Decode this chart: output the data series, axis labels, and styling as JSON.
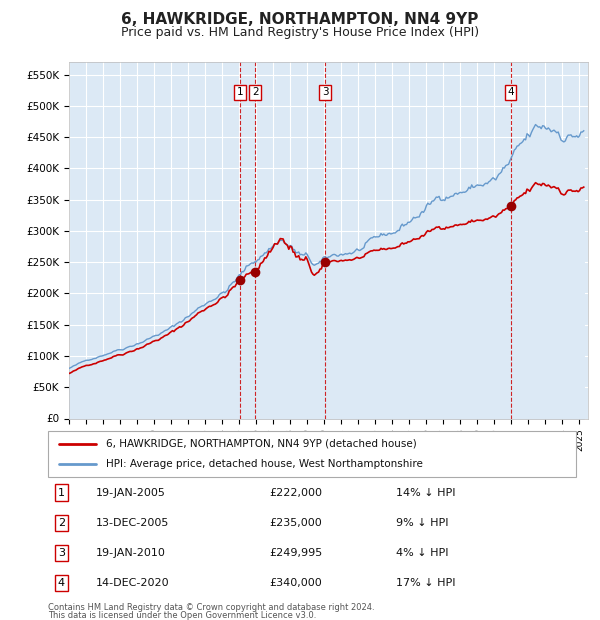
{
  "title": "6, HAWKRIDGE, NORTHAMPTON, NN4 9YP",
  "subtitle": "Price paid vs. HM Land Registry's House Price Index (HPI)",
  "title_fontsize": 11,
  "subtitle_fontsize": 9,
  "ylabel_ticks": [
    "£0",
    "£50K",
    "£100K",
    "£150K",
    "£200K",
    "£250K",
    "£300K",
    "£350K",
    "£400K",
    "£450K",
    "£500K",
    "£550K"
  ],
  "ytick_values": [
    0,
    50000,
    100000,
    150000,
    200000,
    250000,
    300000,
    350000,
    400000,
    450000,
    500000,
    550000
  ],
  "ylim": [
    0,
    570000
  ],
  "xlim_start": 1995.0,
  "xlim_end": 2025.5,
  "background_color": "#ffffff",
  "plot_bg_color": "#dce9f5",
  "grid_color": "#ffffff",
  "legend_label_red": "6, HAWKRIDGE, NORTHAMPTON, NN4 9YP (detached house)",
  "legend_label_blue": "HPI: Average price, detached house, West Northamptonshire",
  "transactions": [
    {
      "num": 1,
      "date": "19-JAN-2005",
      "price": 222000,
      "pct": "14%",
      "x": 2005.05
    },
    {
      "num": 2,
      "date": "13-DEC-2005",
      "price": 235000,
      "pct": "9%",
      "x": 2005.95
    },
    {
      "num": 3,
      "date": "19-JAN-2010",
      "price": 249995,
      "pct": "4%",
      "x": 2010.05
    },
    {
      "num": 4,
      "date": "14-DEC-2020",
      "price": 340000,
      "pct": "17%",
      "x": 2020.95
    }
  ],
  "footer_line1": "Contains HM Land Registry data © Crown copyright and database right 2024.",
  "footer_line2": "This data is licensed under the Open Government Licence v3.0.",
  "red_color": "#cc0000",
  "blue_color": "#6699cc",
  "blue_fill_color": "#dce9f5",
  "marker_color": "#990000"
}
